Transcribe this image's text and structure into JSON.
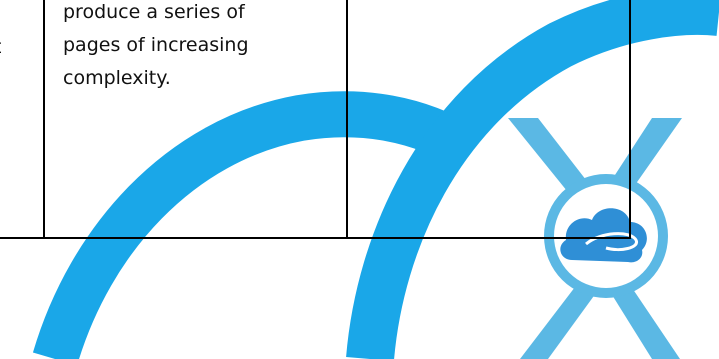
{
  "table": {
    "cell_lines": [
      "produce a series of",
      "pages of increasing",
      "complexity."
    ],
    "left_cut_fragment": "t"
  },
  "colors": {
    "arc_blue": "#1aa7e8",
    "logo_blue": "#5bb8e4",
    "cloud_blue": "#2f8fd6",
    "logo_ring_inner": "#ffffff",
    "table_border": "#000000"
  },
  "icons": {
    "logo": "cloud-x-logo-icon"
  }
}
